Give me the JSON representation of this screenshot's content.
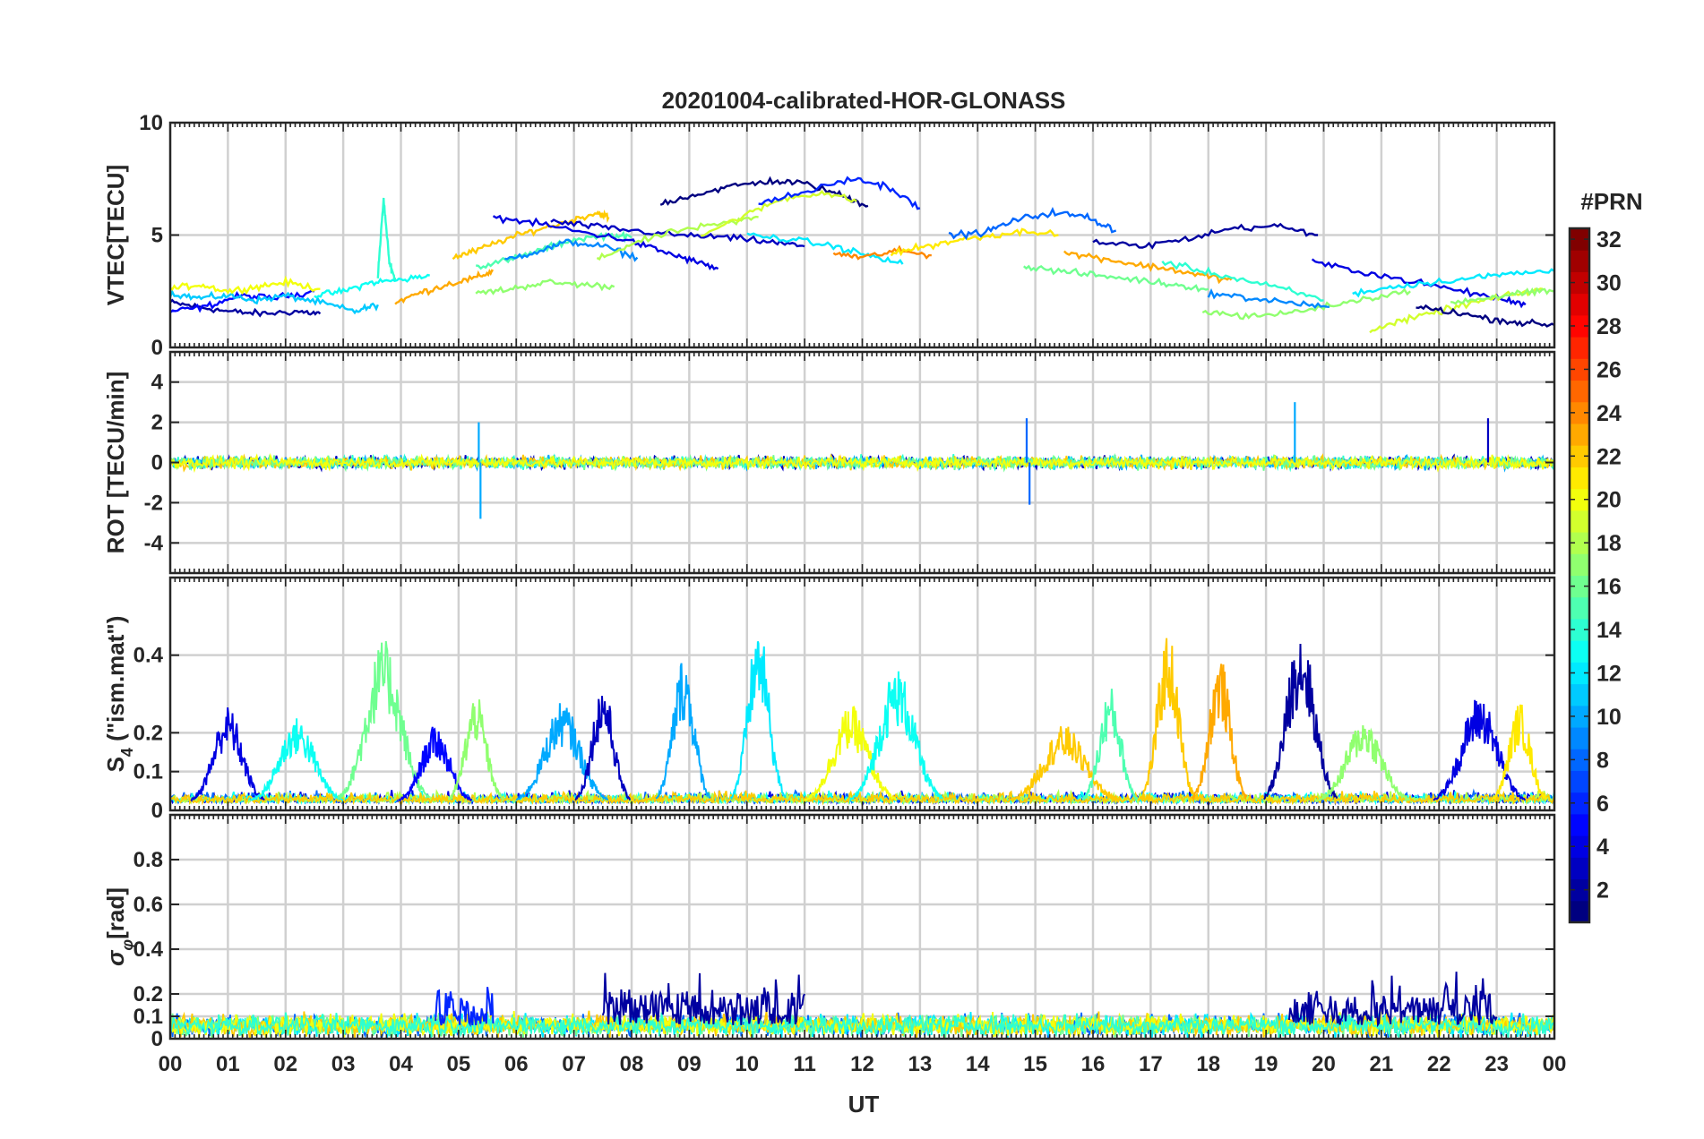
{
  "chart_data": {
    "type": "line",
    "title": "20201004-calibrated-HOR-GLONASS",
    "xlabel": "UT",
    "x_tick_labels": [
      "00",
      "01",
      "02",
      "03",
      "04",
      "05",
      "06",
      "07",
      "08",
      "09",
      "10",
      "11",
      "12",
      "13",
      "14",
      "15",
      "16",
      "17",
      "18",
      "19",
      "20",
      "21",
      "22",
      "23",
      "00"
    ],
    "xlim": [
      0,
      24
    ],
    "colormap": "jet",
    "colorbar": {
      "label": "#PRN",
      "range": [
        1,
        32
      ],
      "tick_labels": [
        "2",
        "4",
        "6",
        "8",
        "10",
        "12",
        "14",
        "16",
        "18",
        "20",
        "22",
        "24",
        "26",
        "28",
        "30",
        "32"
      ],
      "placement": "right"
    },
    "grid": true,
    "panels": [
      {
        "id": "vtec",
        "ylabel": "VTEC[TECU]",
        "ylim": [
          0,
          10
        ],
        "y_ticks": [
          0,
          5,
          10
        ],
        "y_tick_labels": [
          "0",
          "5",
          "10"
        ],
        "kind": "smooth",
        "series": [
          {
            "prn": 2,
            "t": [
              0,
              0.5,
              1,
              1.6,
              2.2,
              2.6
            ],
            "v": [
              2.0,
              1.8,
              1.6,
              1.5,
              1.6,
              1.5
            ]
          },
          {
            "prn": 5,
            "t": [
              0,
              0.6,
              1.2,
              1.8,
              2.5
            ],
            "v": [
              1.6,
              1.8,
              2.3,
              2.2,
              2.5
            ]
          },
          {
            "prn": 11,
            "t": [
              0,
              0.5,
              1,
              1.5,
              2,
              2.6,
              3.2,
              3.6
            ],
            "v": [
              2.4,
              2.2,
              2.3,
              2.1,
              2.3,
              2.0,
              1.6,
              1.9
            ]
          },
          {
            "prn": 20,
            "t": [
              0,
              0.5,
              1,
              1.5,
              2,
              2.6
            ],
            "v": [
              2.6,
              2.8,
              2.5,
              2.7,
              2.9,
              2.6
            ]
          },
          {
            "prn": 13,
            "t": [
              2.5,
              3,
              3.5,
              4,
              4.5
            ],
            "v": [
              2.3,
              2.5,
              2.9,
              3.0,
              3.2
            ]
          },
          {
            "prn": 14,
            "t": [
              3.6,
              3.7,
              3.8,
              3.9
            ],
            "v": [
              3.2,
              6.6,
              3.8,
              3.0
            ]
          },
          {
            "prn": 23,
            "t": [
              3.9,
              4.3,
              4.8,
              5.3,
              5.6
            ],
            "v": [
              2.0,
              2.4,
              2.8,
              3.1,
              3.4
            ]
          },
          {
            "prn": 22,
            "t": [
              4.9,
              5.3,
              5.8,
              6.3,
              6.9,
              7.4,
              7.6
            ],
            "v": [
              4.0,
              4.3,
              4.8,
              5.2,
              5.6,
              6.0,
              5.8
            ]
          },
          {
            "prn": 17,
            "t": [
              5.3,
              5.9,
              6.5,
              7.1,
              7.7
            ],
            "v": [
              2.4,
              2.6,
              2.9,
              2.8,
              2.7
            ]
          },
          {
            "prn": 15,
            "t": [
              5.3,
              5.9,
              6.5,
              7.0,
              7.6,
              8.0
            ],
            "v": [
              3.6,
              3.9,
              4.4,
              4.8,
              5.0,
              4.9
            ]
          },
          {
            "prn": 9,
            "t": [
              5.8,
              6.4,
              6.9,
              7.5,
              8.1
            ],
            "v": [
              3.9,
              4.3,
              4.7,
              4.5,
              4.0
            ]
          },
          {
            "prn": 4,
            "t": [
              5.6,
              6.4,
              7.2,
              7.9,
              8.5,
              9.0,
              9.5
            ],
            "v": [
              5.8,
              5.5,
              5.1,
              4.8,
              4.3,
              3.9,
              3.5
            ]
          },
          {
            "prn": 3,
            "t": [
              6.6,
              7.3,
              8.0,
              8.8,
              9.6,
              10.4,
              11.0
            ],
            "v": [
              5.6,
              5.4,
              5.2,
              5.0,
              4.9,
              4.7,
              4.5
            ]
          },
          {
            "prn": 18,
            "t": [
              7.4,
              8.0,
              8.8,
              9.6,
              10.2
            ],
            "v": [
              3.9,
              4.6,
              5.2,
              5.5,
              5.8
            ]
          },
          {
            "prn": 1,
            "t": [
              8.5,
              9.1,
              9.8,
              10.4,
              11.0,
              11.6,
              12.1
            ],
            "v": [
              6.4,
              6.8,
              7.2,
              7.4,
              7.3,
              6.8,
              6.3
            ]
          },
          {
            "prn": 19,
            "t": [
              9.2,
              9.9,
              10.6,
              11.3,
              11.9
            ],
            "v": [
              5.0,
              5.8,
              6.6,
              6.9,
              6.5
            ]
          },
          {
            "prn": 6,
            "t": [
              10.2,
              11.0,
              11.8,
              12.4,
              13.0
            ],
            "v": [
              6.4,
              6.9,
              7.5,
              7.2,
              6.2
            ]
          },
          {
            "prn": 12,
            "t": [
              10.0,
              10.8,
              11.5,
              12.1,
              12.7
            ],
            "v": [
              5.0,
              4.8,
              4.5,
              4.1,
              3.7
            ]
          },
          {
            "prn": 24,
            "t": [
              11.5,
              12.0,
              12.6,
              13.2
            ],
            "v": [
              4.2,
              4.0,
              4.3,
              4.1
            ]
          },
          {
            "prn": 21,
            "t": [
              12.5,
              13.1,
              13.7,
              14.3,
              14.9,
              15.4
            ],
            "v": [
              4.2,
              4.5,
              4.8,
              5.0,
              5.2,
              5.0
            ]
          },
          {
            "prn": 8,
            "t": [
              13.5,
              14.1,
              14.7,
              15.3,
              15.9,
              16.4
            ],
            "v": [
              5.0,
              5.1,
              5.7,
              6.0,
              5.8,
              5.2
            ]
          },
          {
            "prn": 16,
            "t": [
              14.8,
              15.4,
              16.1,
              16.8,
              17.4,
              18.0
            ],
            "v": [
              3.6,
              3.4,
              3.2,
              3.0,
              2.8,
              2.6
            ]
          },
          {
            "prn": 23,
            "t": [
              15.5,
              16.1,
              16.7,
              17.3,
              17.9,
              18.4
            ],
            "v": [
              4.2,
              4.0,
              3.7,
              3.5,
              3.2,
              3.0
            ]
          },
          {
            "prn": 2,
            "t": [
              16.0,
              16.8,
              17.6,
              18.4,
              19.2,
              19.9
            ],
            "v": [
              4.7,
              4.5,
              4.8,
              5.3,
              5.4,
              5.0
            ]
          },
          {
            "prn": 14,
            "t": [
              17.2,
              17.9,
              18.6,
              19.3,
              20.0
            ],
            "v": [
              3.8,
              3.4,
              3.0,
              2.6,
              2.1
            ]
          },
          {
            "prn": 17,
            "t": [
              17.9,
              18.6,
              19.3,
              20.0,
              20.8,
              21.5
            ],
            "v": [
              1.6,
              1.4,
              1.5,
              1.8,
              2.2,
              2.5
            ]
          },
          {
            "prn": 9,
            "t": [
              18.0,
              18.7,
              19.4,
              20.1
            ],
            "v": [
              2.4,
              2.2,
              2.0,
              1.8
            ]
          },
          {
            "prn": 4,
            "t": [
              19.8,
              20.6,
              21.4,
              22.2,
              23.0,
              23.5
            ],
            "v": [
              3.8,
              3.4,
              3.0,
              2.6,
              2.2,
              1.9
            ]
          },
          {
            "prn": 12,
            "t": [
              20.5,
              21.2,
              21.9,
              22.6,
              23.3,
              24.0
            ],
            "v": [
              2.4,
              2.7,
              2.9,
              3.1,
              3.3,
              3.4
            ]
          },
          {
            "prn": 19,
            "t": [
              20.8,
              21.4,
              22.0,
              22.6,
              23.2,
              23.8
            ],
            "v": [
              0.8,
              1.2,
              1.6,
              2.0,
              2.3,
              2.6
            ]
          },
          {
            "prn": 1,
            "t": [
              21.6,
              22.2,
              22.8,
              23.4,
              24.0
            ],
            "v": [
              1.8,
              1.6,
              1.3,
              1.1,
              1.0
            ]
          },
          {
            "prn": 17,
            "t": [
              22.2,
              22.8,
              23.4,
              24.0
            ],
            "v": [
              2.0,
              2.2,
              2.4,
              2.5
            ]
          }
        ]
      },
      {
        "id": "rot",
        "ylabel": "ROT [TECU/min]",
        "ylim": [
          -5.5,
          5.5
        ],
        "y_ticks": [
          -4,
          -2,
          0,
          2,
          4
        ],
        "y_tick_labels": [
          "-4",
          "-2",
          "0",
          "2",
          "4"
        ],
        "kind": "noise",
        "baseline": 0,
        "amplitude": 0.25,
        "series_prns": [
          3,
          10,
          14,
          22,
          16,
          20
        ],
        "spikes": [
          {
            "t": 5.35,
            "v": 2.0,
            "prn": 10
          },
          {
            "t": 5.38,
            "v": -2.8,
            "prn": 10
          },
          {
            "t": 14.85,
            "v": 2.2,
            "prn": 8
          },
          {
            "t": 14.9,
            "v": -2.1,
            "prn": 8
          },
          {
            "t": 19.5,
            "v": 3.0,
            "prn": 10
          },
          {
            "t": 22.85,
            "v": 2.2,
            "prn": 3
          }
        ]
      },
      {
        "id": "s4",
        "ylabel": "S4 (\"ism.mat\")",
        "ylabel_main": "S",
        "ylabel_sub": "4",
        "ylabel_rest": " (\"ism.mat\")",
        "ylim": [
          0,
          0.6
        ],
        "y_ticks": [
          0,
          0.1,
          0.2,
          0.4
        ],
        "y_tick_labels": [
          "0",
          "0.1",
          "0.2",
          "0.4"
        ],
        "kind": "s4",
        "peaks": [
          {
            "prn": 4,
            "c": 1.0,
            "w": 0.4,
            "h": 0.25
          },
          {
            "prn": 13,
            "c": 2.2,
            "w": 0.5,
            "h": 0.22
          },
          {
            "prn": 16,
            "c": 3.7,
            "w": 0.5,
            "h": 0.42
          },
          {
            "prn": 5,
            "c": 4.6,
            "w": 0.4,
            "h": 0.2
          },
          {
            "prn": 17,
            "c": 5.3,
            "w": 0.3,
            "h": 0.28
          },
          {
            "prn": 10,
            "c": 6.8,
            "w": 0.5,
            "h": 0.26
          },
          {
            "prn": 3,
            "c": 7.5,
            "w": 0.3,
            "h": 0.31
          },
          {
            "prn": 10,
            "c": 8.9,
            "w": 0.3,
            "h": 0.38
          },
          {
            "prn": 12,
            "c": 10.2,
            "w": 0.3,
            "h": 0.46
          },
          {
            "prn": 20,
            "c": 11.8,
            "w": 0.5,
            "h": 0.25
          },
          {
            "prn": 13,
            "c": 12.6,
            "w": 0.5,
            "h": 0.35
          },
          {
            "prn": 22,
            "c": 15.5,
            "w": 0.6,
            "h": 0.2
          },
          {
            "prn": 15,
            "c": 16.3,
            "w": 0.3,
            "h": 0.3
          },
          {
            "prn": 22,
            "c": 17.3,
            "w": 0.3,
            "h": 0.44
          },
          {
            "prn": 23,
            "c": 18.2,
            "w": 0.3,
            "h": 0.38
          },
          {
            "prn": 2,
            "c": 19.6,
            "w": 0.4,
            "h": 0.45
          },
          {
            "prn": 17,
            "c": 20.7,
            "w": 0.5,
            "h": 0.22
          },
          {
            "prn": 4,
            "c": 22.7,
            "w": 0.5,
            "h": 0.28
          },
          {
            "prn": 21,
            "c": 23.4,
            "w": 0.3,
            "h": 0.26
          }
        ]
      },
      {
        "id": "sigma",
        "ylabel": "σφ[rad]",
        "ylabel_main": "σ",
        "ylabel_sub": "φ",
        "ylabel_rest": "[rad]",
        "ylim": [
          0,
          1
        ],
        "y_ticks": [
          0,
          0.1,
          0.2,
          0.4,
          0.6,
          0.8
        ],
        "y_tick_labels": [
          "0",
          "0.1",
          "0.2",
          "0.4",
          "0.6",
          "0.8"
        ],
        "kind": "noise",
        "baseline": 0.06,
        "amplitude": 0.04,
        "series_prns": [
          8,
          12,
          16,
          22,
          20,
          14
        ],
        "bursts": [
          {
            "prn": 2,
            "t0": 7.5,
            "t1": 11.0,
            "v": 0.22
          },
          {
            "prn": 2,
            "t0": 19.4,
            "t1": 23.0,
            "v": 0.22
          },
          {
            "prn": 6,
            "t0": 4.6,
            "t1": 5.6,
            "v": 0.18
          }
        ]
      }
    ]
  }
}
